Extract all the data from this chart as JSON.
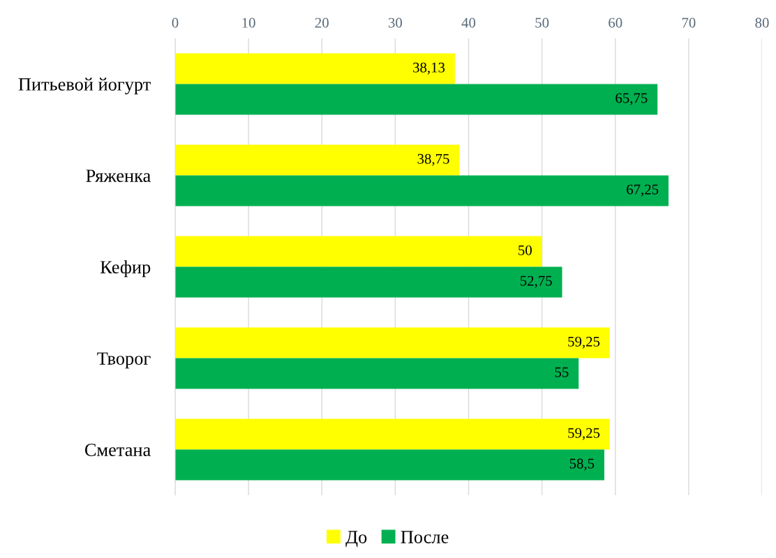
{
  "chart_data": {
    "type": "bar",
    "orientation": "horizontal",
    "categories": [
      "Питьевой йогурт",
      "Ряженка",
      "Кефир",
      "Творог",
      "Сметана"
    ],
    "series": [
      {
        "name": "До",
        "color": "#ffff00",
        "values": [
          38.13,
          38.75,
          50,
          59.25,
          59.25
        ],
        "value_labels": [
          "38,13",
          "38,75",
          "50",
          "59,25",
          "59,25"
        ]
      },
      {
        "name": "После",
        "color": "#00b050",
        "values": [
          65.75,
          67.25,
          52.75,
          55,
          58.5
        ],
        "value_labels": [
          "65,75",
          "67,25",
          "52,75",
          "55",
          "58,5"
        ]
      }
    ],
    "xlim": [
      0,
      80
    ],
    "xticks": [
      0,
      10,
      20,
      30,
      40,
      50,
      60,
      70,
      80
    ],
    "grid": "x",
    "legend": "bottom"
  }
}
